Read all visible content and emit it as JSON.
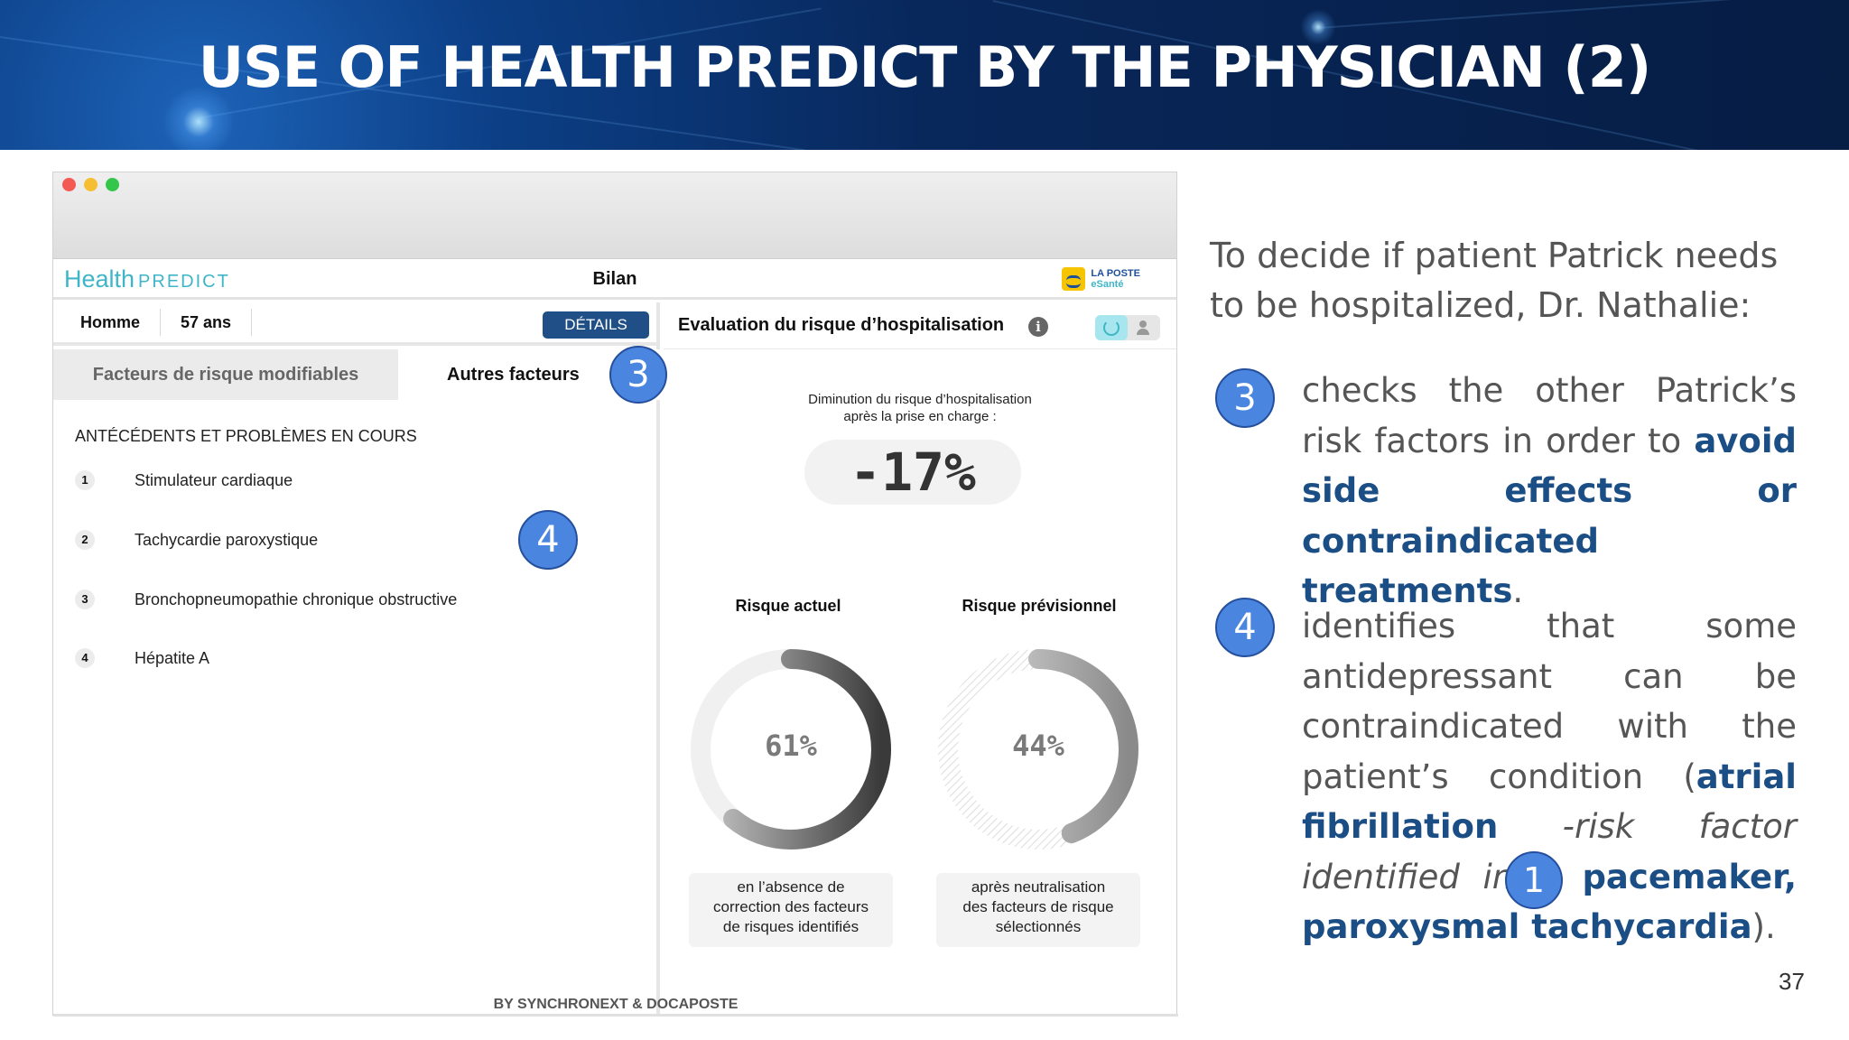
{
  "slide": {
    "title": "USE OF HEALTH PREDICT BY THE PHYSICIAN (2)",
    "page_number": "37",
    "intro": "To decide if patient Patrick needs to be hospitalized, Dr. Nathalie:",
    "step3": {
      "badge": "3",
      "text_a": "checks the other Patrick’s risk factors in order to ",
      "bold": "avoid side effects or contraindicated treatments",
      "text_b": "."
    },
    "step4": {
      "badge": "4",
      "text_a": "identifies that some antidepressant can be contraindicated with the patient’s condition (",
      "bold_a": "atrial fibrillation",
      "italic": " -risk factor identified in ",
      "text_b": " -, ",
      "bold_b": "pacemaker, paroxysmal tachycardia",
      "text_c": ")."
    }
  },
  "app": {
    "brand_health": "Health",
    "brand_predict": "PREDICT",
    "center_title": "Bilan",
    "partner_line1": "LA POSTE",
    "partner_line2": "eSanté",
    "footer": "BY SYNCHRONEXT & DOCAPOSTE",
    "patient": {
      "name": "Homme",
      "age": "57 ans",
      "details_button": "DÉTAILS"
    },
    "tabs": [
      {
        "label": "Facteurs de risque modifiables",
        "active": false
      },
      {
        "label": "Autres facteurs",
        "active": true
      }
    ],
    "section_title": "ANTÉCÉDENTS ET PROBLÈMES EN COURS",
    "conditions": [
      {
        "num": "1",
        "label": "Stimulateur cardiaque"
      },
      {
        "num": "2",
        "label": "Tachycardie paroxystique"
      },
      {
        "num": "3",
        "label": "Bronchopneumopathie chronique obstructive"
      },
      {
        "num": "4",
        "label": "Hépatite A"
      }
    ],
    "risk_panel": {
      "title": "Evaluation du risque d’hospitalisation",
      "info": "i",
      "reduction_label_line1": "Diminution du risque d’hospitalisation",
      "reduction_label_line2": "après la prise en charge :",
      "reduction_value": "-17%",
      "current": {
        "title": "Risque actuel",
        "value": "61%",
        "fraction": 0.61,
        "note_line1": "en l’absence de",
        "note_line2": "correction des facteurs",
        "note_line3": "de risques identifiés"
      },
      "forecast": {
        "title": "Risque prévisionnel",
        "value": "44%",
        "fraction": 0.44,
        "note_line1": "après neutralisation",
        "note_line2": "des facteurs de risque",
        "note_line3": "sélectionnés"
      }
    }
  },
  "annotations": {
    "badge_tab": "3",
    "badge_list": "4",
    "badge_text": "1"
  },
  "colors": {
    "accent_blue": "#1c4e86",
    "badge_blue": "#4a86e0",
    "brand_teal": "#3fb6c8",
    "details_button": "#1f4f86"
  }
}
